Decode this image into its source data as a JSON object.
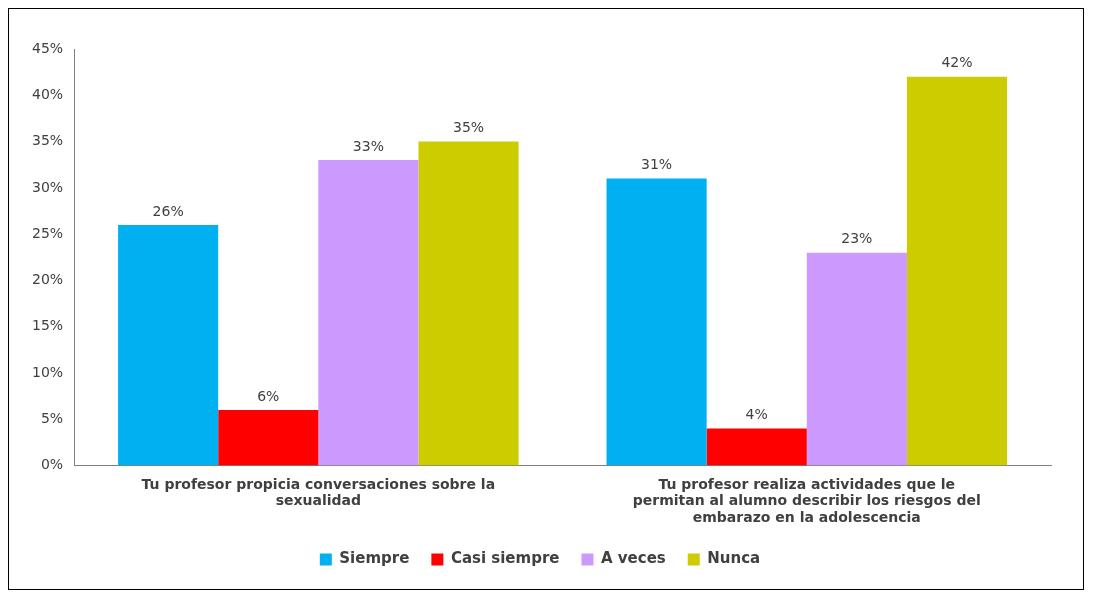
{
  "chart_data": {
    "type": "bar",
    "categories": [
      "Tu profesor propicia conversaciones sobre la sexualidad",
      "Tu profesor realiza actividades que le permitan al alumno describir los riesgos del embarazo en la adolescencia"
    ],
    "series": [
      {
        "name": "Siempre",
        "color": "#00b0f0",
        "values": [
          26,
          31
        ],
        "value_labels": [
          "26%",
          "31%"
        ]
      },
      {
        "name": "Casi siempre",
        "color": "#ff0000",
        "values": [
          6,
          4
        ],
        "value_labels": [
          "6%",
          "4%"
        ]
      },
      {
        "name": "A veces",
        "color": "#cc99ff",
        "values": [
          33,
          23
        ],
        "value_labels": [
          "33%",
          "23%"
        ]
      },
      {
        "name": "Nunca",
        "color": "#cccc00",
        "values": [
          35,
          42
        ],
        "value_labels": [
          "35%",
          "42%"
        ]
      }
    ],
    "ylim": [
      0,
      45
    ],
    "yticks": [
      {
        "value": 0,
        "label": "0%"
      },
      {
        "value": 5,
        "label": "5%"
      },
      {
        "value": 10,
        "label": "10%"
      },
      {
        "value": 15,
        "label": "15%"
      },
      {
        "value": 20,
        "label": "20%"
      },
      {
        "value": 25,
        "label": "25%"
      },
      {
        "value": 30,
        "label": "30%"
      },
      {
        "value": 35,
        "label": "35%"
      },
      {
        "value": 40,
        "label": "40%"
      },
      {
        "value": 45,
        "label": "45%"
      }
    ],
    "grid": false,
    "legend": "bottom"
  }
}
